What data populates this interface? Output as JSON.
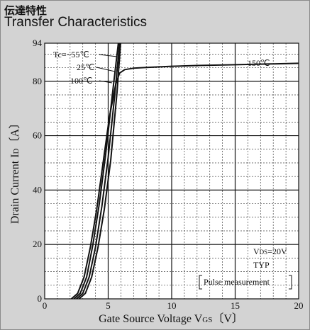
{
  "header": {
    "title_ja": "伝達特性",
    "title_en": "Transfer Characteristics"
  },
  "chart_data": {
    "type": "line",
    "xlabel": "Gate Source Voltage",
    "xlabel_symbol": "V",
    "xlabel_subscript": "GS",
    "xlabel_unit": "〔V〕",
    "ylabel": "Drain Current",
    "ylabel_symbol": "I",
    "ylabel_subscript": "D",
    "ylabel_unit": "〔A〕",
    "xlim": [
      0,
      20
    ],
    "ylim": [
      0,
      94
    ],
    "xticks": [
      0,
      5,
      10,
      15,
      20
    ],
    "yticks": [
      0,
      20,
      40,
      60,
      80,
      94
    ],
    "grid": true,
    "conditions": {
      "vds_symbol": "V",
      "vds_subscript": "DS",
      "vds_value": "=20V",
      "typ": "TYP",
      "pulse": "Pulse measurement"
    },
    "series": [
      {
        "name": "Tc=−55℃",
        "x": [
          2.7,
          3.2,
          3.7,
          4.2,
          4.7,
          5.2,
          5.7,
          5.98
        ],
        "y": [
          0,
          2,
          8,
          19,
          33,
          51,
          76,
          94
        ]
      },
      {
        "name": "25℃",
        "x": [
          2.5,
          3.0,
          3.5,
          4.0,
          4.5,
          5.0,
          5.5,
          5.9
        ],
        "y": [
          0,
          2,
          8,
          19,
          34,
          52,
          74,
          94
        ]
      },
      {
        "name": "100℃",
        "x": [
          2.3,
          2.8,
          3.3,
          3.8,
          4.3,
          4.8,
          5.3,
          5.8
        ],
        "y": [
          0,
          2,
          8,
          20,
          35,
          53,
          74,
          94
        ]
      },
      {
        "name": "150℃",
        "x": [
          2.1,
          2.6,
          3.1,
          3.6,
          4.1,
          4.6,
          5.1,
          5.6,
          5.9,
          6.3,
          7,
          8,
          10,
          12,
          14,
          16,
          18,
          20
        ],
        "y": [
          0,
          2,
          8,
          19,
          33,
          50,
          67,
          79,
          83,
          84.3,
          84.8,
          85.1,
          85.5,
          85.8,
          86,
          86.2,
          86.4,
          86.6
        ]
      }
    ]
  }
}
